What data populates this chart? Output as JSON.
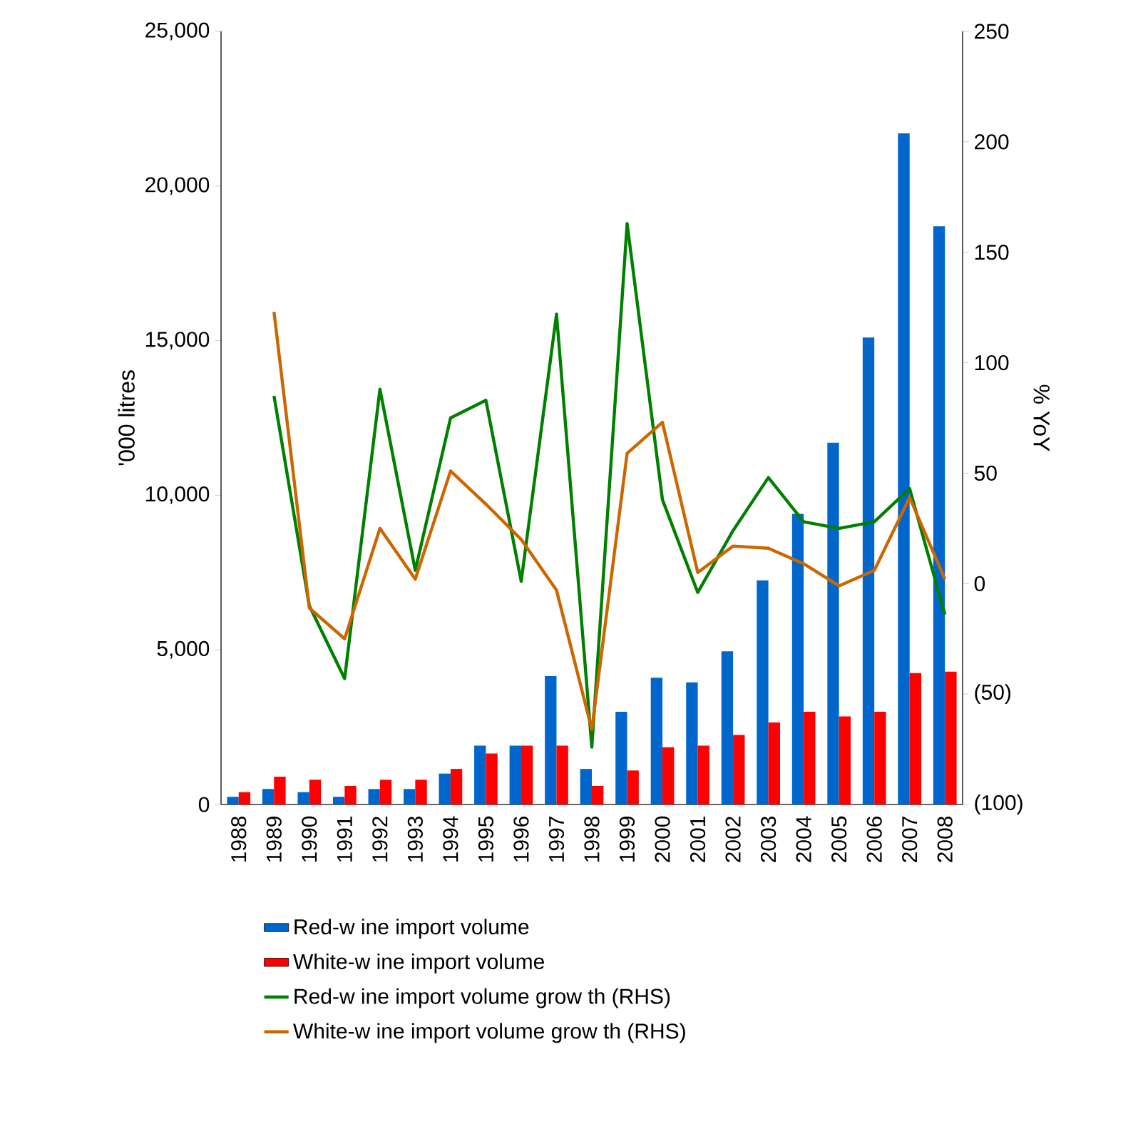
{
  "chart_data": {
    "type": "bar",
    "categories": [
      "1988",
      "1989",
      "1990",
      "1991",
      "1992",
      "1993",
      "1994",
      "1995",
      "1996",
      "1997",
      "1998",
      "1999",
      "2000",
      "2001",
      "2002",
      "2003",
      "2004",
      "2005",
      "2006",
      "2007",
      "2008"
    ],
    "series": [
      {
        "name": "Red-w ine import volume",
        "color": "#0066cc",
        "values": [
          250,
          500,
          400,
          250,
          500,
          500,
          1000,
          1900,
          1900,
          4150,
          1150,
          3000,
          4100,
          3950,
          4950,
          7250,
          9400,
          11700,
          15100,
          21700,
          18700
        ]
      },
      {
        "name": "White-w ine import volume",
        "color": "#ff0000",
        "values": [
          400,
          900,
          800,
          600,
          800,
          800,
          1150,
          1650,
          1900,
          1900,
          600,
          1100,
          1850,
          1900,
          2250,
          2650,
          3000,
          2850,
          3000,
          4250,
          4300
        ]
      },
      {
        "name": "Red-w ine import volume grow th (RHS)",
        "type": "line",
        "axis": "y2",
        "color": "#008000",
        "values": [
          null,
          85,
          -10,
          -43,
          88,
          6,
          75,
          83,
          1,
          122,
          -74,
          163,
          38,
          -4,
          24,
          48,
          28,
          25,
          28,
          43,
          -14
        ]
      },
      {
        "name": "White-w ine import volume grow th (RHS)",
        "type": "line",
        "axis": "y2",
        "color": "#cc6600",
        "values": [
          null,
          123,
          -11,
          -25,
          25,
          2,
          51,
          36,
          20,
          -3,
          -66,
          59,
          73,
          5,
          17,
          16,
          9,
          -1,
          6,
          39,
          2
        ]
      }
    ],
    "ylabel": "'000 litres",
    "y2label": "% YoY",
    "ylim": [
      0,
      25000
    ],
    "yticks": [
      0,
      {
        "value": 5000,
        "label": "5,000"
      },
      {
        "value": 10000,
        "label": "10,000"
      },
      {
        "value": 15000,
        "label": "15,000"
      },
      {
        "value": 20000,
        "label": "20,000"
      },
      {
        "value": 25000,
        "label": "25,000"
      }
    ],
    "y2lim": [
      -100,
      250
    ],
    "y2ticks": [
      {
        "value": -100,
        "label": "(100)"
      },
      {
        "value": -50,
        "label": "(50)"
      },
      0,
      50,
      100,
      150,
      200,
      250
    ],
    "legend": "bottom",
    "grid": false
  }
}
